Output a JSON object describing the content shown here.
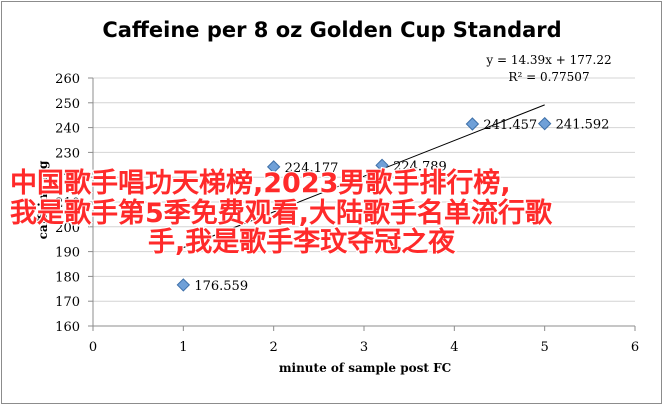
{
  "chart_data": {
    "type": "scatter",
    "title": "Caffeine per 8 oz Golden Cup Standard",
    "xlabel": "minute of sample post FC",
    "ylabel": "caffeine mg",
    "xlim": [
      0,
      6
    ],
    "ylim": [
      160,
      260
    ],
    "xticks": [
      "0",
      "1",
      "2",
      "3",
      "4",
      "5",
      "6"
    ],
    "yticks": [
      "160",
      "170",
      "180",
      "190",
      "200",
      "210",
      "220",
      "230",
      "240",
      "250",
      "260"
    ],
    "grid": true,
    "points": [
      {
        "x": 1,
        "y": 176.559,
        "label": "176.559"
      },
      {
        "x": 2,
        "y": 224.177,
        "label": "224.177"
      },
      {
        "x": 3.2,
        "y": 224.789,
        "label": "224.789"
      },
      {
        "x": 4.2,
        "y": 241.457,
        "label": "241.457"
      },
      {
        "x": 5,
        "y": 241.592,
        "label": "241.592"
      }
    ],
    "trendline": {
      "slope": 14.39,
      "intercept": 177.22,
      "x_range": [
        1,
        5
      ],
      "equation": "y = 14.39x + 177.22",
      "r2": "R² = 0.77507"
    },
    "colors": {
      "marker": "#6fa0d8",
      "marker_stroke": "#3d6fa8",
      "trend": "#000000",
      "grid": "#d4d4d4"
    }
  },
  "overlay_text": {
    "line1": "中国歌手唱功天梯榜,2023男歌手排行榜,",
    "line2": "我是歌手第5季免费观看,大陆歌手名单流行歌",
    "line3": "手,我是歌手李玟夺冠之夜"
  }
}
